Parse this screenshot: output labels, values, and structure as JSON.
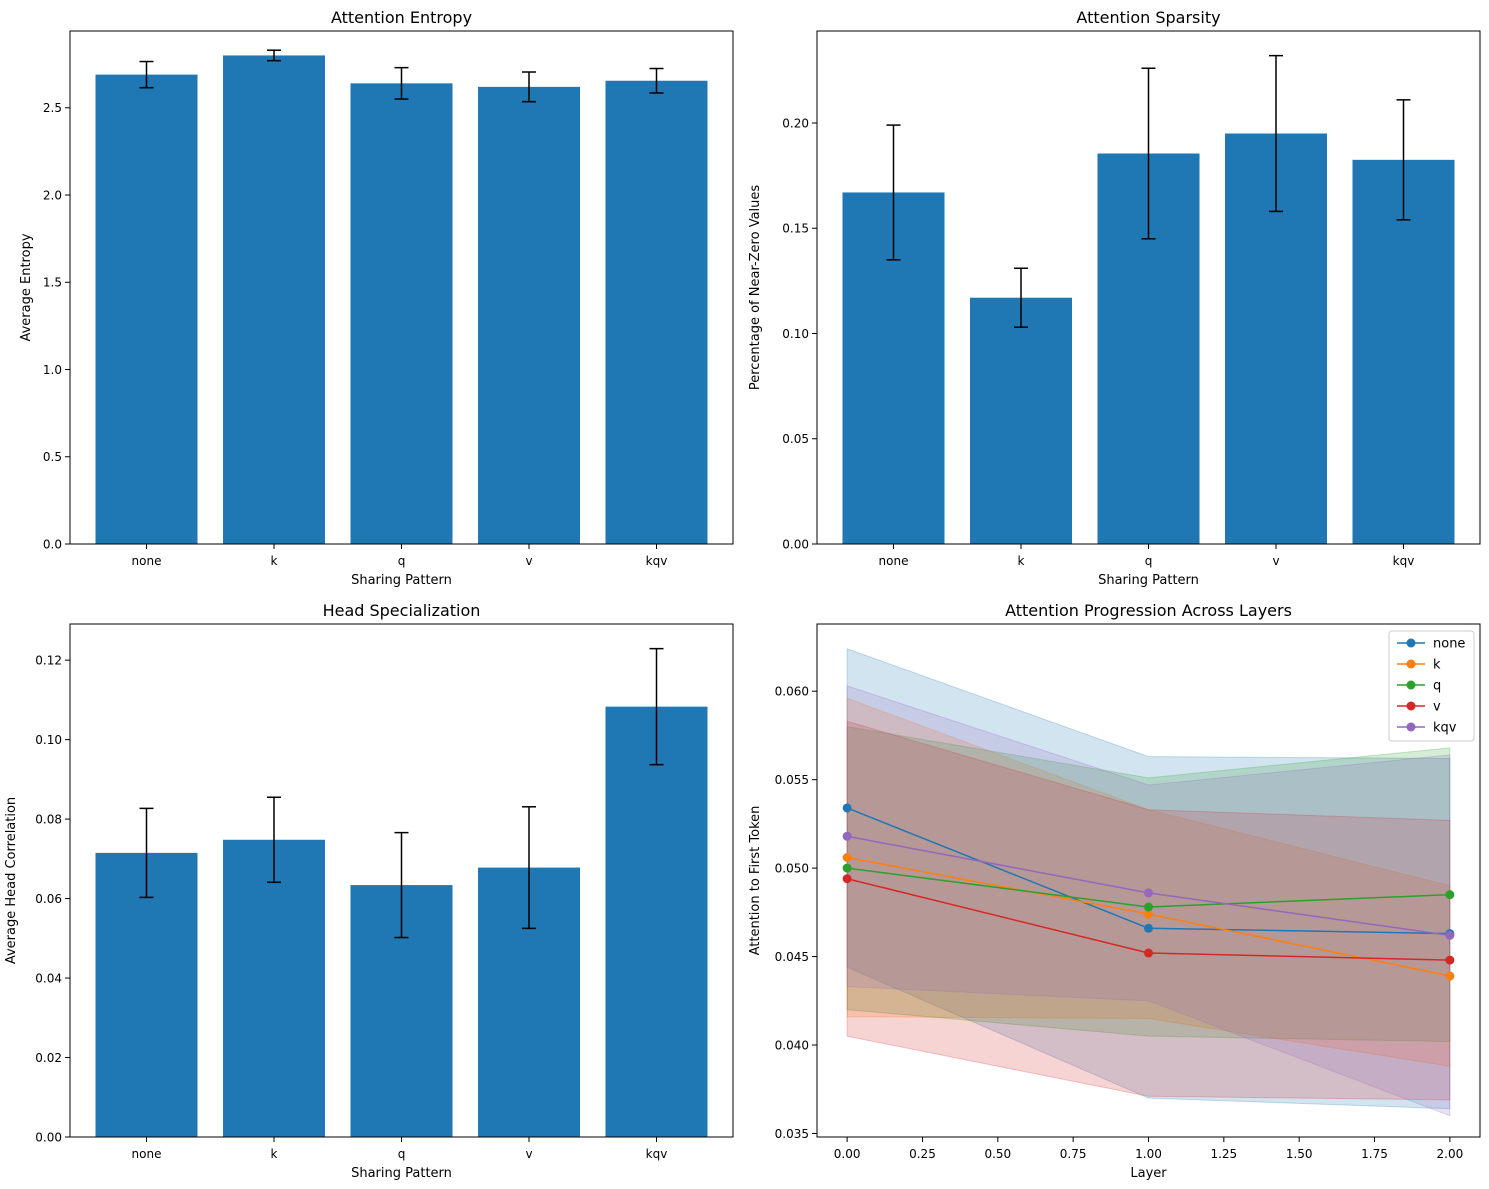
{
  "chart_data": [
    {
      "type": "bar",
      "title": "Attention Entropy",
      "xlabel": "Sharing Pattern",
      "ylabel": "Average Entropy",
      "categories": [
        "none",
        "k",
        "q",
        "v",
        "kqv"
      ],
      "values": [
        2.69,
        2.8,
        2.64,
        2.62,
        2.655
      ],
      "errors": [
        0.075,
        0.03,
        0.09,
        0.085,
        0.07
      ],
      "ylim": [
        0,
        2.94
      ],
      "yticks": [
        0.0,
        0.5,
        1.0,
        1.5,
        2.0,
        2.5
      ],
      "ytick_labels": [
        "0.0",
        "0.5",
        "1.0",
        "1.5",
        "2.0",
        "2.5"
      ],
      "color": "#1f77b4"
    },
    {
      "type": "bar",
      "title": "Attention Sparsity",
      "xlabel": "Sharing Pattern",
      "ylabel": "Percentage of Near-Zero Values",
      "categories": [
        "none",
        "k",
        "q",
        "v",
        "kqv"
      ],
      "values": [
        0.167,
        0.117,
        0.1855,
        0.195,
        0.1825
      ],
      "errors": [
        0.032,
        0.014,
        0.0405,
        0.037,
        0.0285
      ],
      "ylim": [
        0,
        0.2437
      ],
      "yticks": [
        0.0,
        0.05,
        0.1,
        0.15,
        0.2
      ],
      "ytick_labels": [
        "0.00",
        "0.05",
        "0.10",
        "0.15",
        "0.20"
      ],
      "color": "#1f77b4"
    },
    {
      "type": "bar",
      "title": "Head Specialization",
      "xlabel": "Sharing Pattern",
      "ylabel": "Average Head Correlation",
      "categories": [
        "none",
        "k",
        "q",
        "v",
        "kqv"
      ],
      "values": [
        0.0715,
        0.0748,
        0.0634,
        0.0678,
        0.1083
      ],
      "errors": [
        0.0112,
        0.0107,
        0.0132,
        0.0153,
        0.0146
      ],
      "ylim": [
        0,
        0.1291
      ],
      "yticks": [
        0.0,
        0.02,
        0.04,
        0.06,
        0.08,
        0.1,
        0.12
      ],
      "ytick_labels": [
        "0.00",
        "0.02",
        "0.04",
        "0.06",
        "0.08",
        "0.10",
        "0.12"
      ],
      "color": "#1f77b4"
    },
    {
      "type": "line",
      "title": "Attention Progression Across Layers",
      "xlabel": "Layer",
      "ylabel": "Attention to First Token",
      "x": [
        0,
        1,
        2
      ],
      "xlim": [
        -0.1,
        2.1
      ],
      "ylim": [
        0.0348,
        0.0638
      ],
      "xticks": [
        0.0,
        0.25,
        0.5,
        0.75,
        1.0,
        1.25,
        1.5,
        1.75,
        2.0
      ],
      "xtick_labels": [
        "0.00",
        "0.25",
        "0.50",
        "0.75",
        "1.00",
        "1.25",
        "1.50",
        "1.75",
        "2.00"
      ],
      "yticks": [
        0.035,
        0.04,
        0.045,
        0.05,
        0.055,
        0.06
      ],
      "ytick_labels": [
        "0.035",
        "0.040",
        "0.045",
        "0.050",
        "0.055",
        "0.060"
      ],
      "legend_position": "upper right",
      "series": [
        {
          "name": "none",
          "color": "#1f77b4",
          "values": [
            0.0534,
            0.0466,
            0.0463
          ],
          "lower": [
            0.0444,
            0.037,
            0.0364
          ],
          "upper": [
            0.0624,
            0.0563,
            0.0562
          ]
        },
        {
          "name": "k",
          "color": "#ff7f0e",
          "values": [
            0.0506,
            0.0474,
            0.0439
          ],
          "lower": [
            0.0416,
            0.0415,
            0.0388
          ],
          "upper": [
            0.0596,
            0.0533,
            0.049
          ]
        },
        {
          "name": "q",
          "color": "#2ca02c",
          "values": [
            0.05,
            0.0478,
            0.0485
          ],
          "lower": [
            0.042,
            0.0405,
            0.0402
          ],
          "upper": [
            0.058,
            0.0551,
            0.0568
          ]
        },
        {
          "name": "v",
          "color": "#d62728",
          "values": [
            0.0494,
            0.0452,
            0.0448
          ],
          "lower": [
            0.0405,
            0.0371,
            0.0369
          ],
          "upper": [
            0.0583,
            0.0533,
            0.0527
          ]
        },
        {
          "name": "kqv",
          "color": "#9467bd",
          "values": [
            0.0518,
            0.0486,
            0.0462
          ],
          "lower": [
            0.0433,
            0.0425,
            0.036
          ],
          "upper": [
            0.0603,
            0.0547,
            0.0564
          ]
        }
      ]
    }
  ]
}
